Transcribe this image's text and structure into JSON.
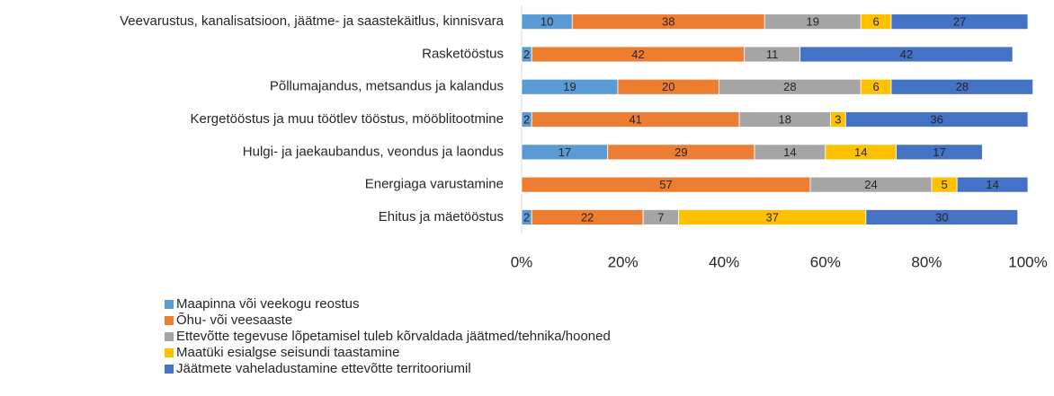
{
  "chart_data": {
    "type": "stacked_barh",
    "categories": [
      "Veevarustus, kanalisatsioon, jäätme- ja saastekäitlus, kinnisvara",
      "Rasketööstus",
      "Põllumajandus, metsandus ja kalandus",
      "Kergetööstus ja muu töötlev tööstus, mööblitootmine",
      "Hulgi- ja jaekaubandus, veondus ja laondus",
      "Energiaga varustamine",
      "Ehitus ja mäetööstus"
    ],
    "series": [
      {
        "name": "Maapinna või veekogu reostus",
        "color": "#5b9bd5",
        "values": [
          10,
          2,
          19,
          2,
          17,
          null,
          2
        ]
      },
      {
        "name": "Õhu- või veesaaste",
        "color": "#ed7d31",
        "values": [
          38,
          42,
          20,
          41,
          29,
          57,
          22
        ]
      },
      {
        "name": "Ettevõtte tegevuse lõpetamisel tuleb kõrvaldada jäätmed/tehnika/hooned",
        "color": "#a5a5a5",
        "values": [
          19,
          11,
          28,
          18,
          14,
          24,
          7
        ]
      },
      {
        "name": "Maatüki esialgse seisundi taastamine",
        "color": "#ffc000",
        "values": [
          6,
          null,
          6,
          3,
          14,
          5,
          37
        ]
      },
      {
        "name": "Jäätmete vaheladustamine ettevõtte territooriumil",
        "color": "#4472c4",
        "values": [
          27,
          42,
          28,
          36,
          17,
          14,
          30
        ]
      }
    ],
    "xlim": [
      0,
      100
    ],
    "xticks": [
      {
        "value": 0,
        "label": "0%"
      },
      {
        "value": 20,
        "label": "20%"
      },
      {
        "value": 40,
        "label": "40%"
      },
      {
        "value": 60,
        "label": "60%"
      },
      {
        "value": 80,
        "label": "80%"
      },
      {
        "value": 100,
        "label": "100%"
      }
    ],
    "legend": "bottom"
  }
}
